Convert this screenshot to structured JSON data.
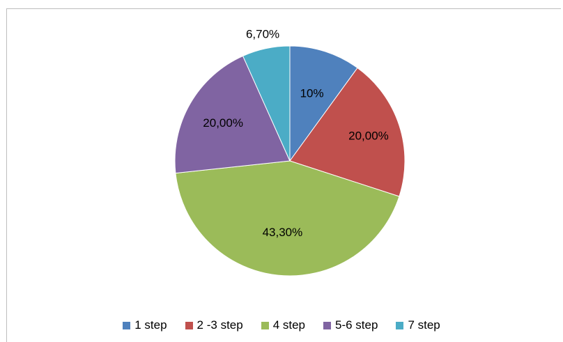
{
  "chart_data": {
    "type": "pie",
    "title": "",
    "categories": [
      "1 step",
      "2 -3 step",
      "4 step",
      "5-6 step",
      "7 step"
    ],
    "values": [
      10,
      20,
      43.3,
      20,
      6.7
    ],
    "data_labels": [
      "10%",
      "20,00%",
      "43,30%",
      "20,00%",
      "6,70%"
    ],
    "colors": [
      "#4F81BD",
      "#C0504D",
      "#9BBB59",
      "#8064A2",
      "#4BACC6"
    ],
    "start_angle": "12 o'clock",
    "direction": "clockwise",
    "legend_position": "bottom"
  },
  "legend": {
    "items": [
      {
        "label": "1 step",
        "color": "#4F81BD"
      },
      {
        "label": "2 -3 step",
        "color": "#C0504D"
      },
      {
        "label": "4 step",
        "color": "#9BBB59"
      },
      {
        "label": "5-6 step",
        "color": "#8064A2"
      },
      {
        "label": "7 step",
        "color": "#4BACC6"
      }
    ]
  }
}
